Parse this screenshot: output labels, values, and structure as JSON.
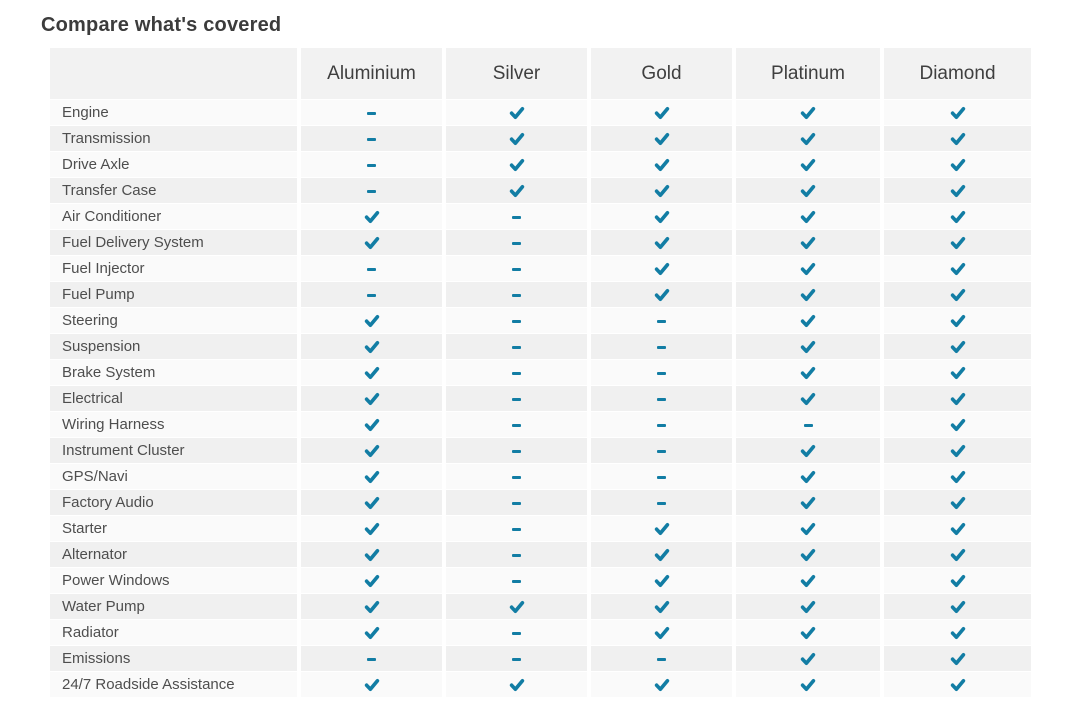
{
  "page": {
    "title": "Compare what's covered"
  },
  "table": {
    "accent_color": "#127da4",
    "check_icon_name": "check-icon",
    "dash_icon_name": "dash-icon",
    "row_label_header": "",
    "columns": [
      "Aluminium",
      "Silver",
      "Gold",
      "Platinum",
      "Diamond"
    ],
    "rows": [
      {
        "label": "Engine",
        "covered": [
          false,
          true,
          true,
          true,
          true
        ]
      },
      {
        "label": "Transmission",
        "covered": [
          false,
          true,
          true,
          true,
          true
        ]
      },
      {
        "label": "Drive Axle",
        "covered": [
          false,
          true,
          true,
          true,
          true
        ]
      },
      {
        "label": "Transfer Case",
        "covered": [
          false,
          true,
          true,
          true,
          true
        ]
      },
      {
        "label": "Air Conditioner",
        "covered": [
          true,
          false,
          true,
          true,
          true
        ]
      },
      {
        "label": "Fuel Delivery System",
        "covered": [
          true,
          false,
          true,
          true,
          true
        ]
      },
      {
        "label": "Fuel Injector",
        "covered": [
          false,
          false,
          true,
          true,
          true
        ]
      },
      {
        "label": "Fuel Pump",
        "covered": [
          false,
          false,
          true,
          true,
          true
        ]
      },
      {
        "label": "Steering",
        "covered": [
          true,
          false,
          false,
          true,
          true
        ]
      },
      {
        "label": "Suspension",
        "covered": [
          true,
          false,
          false,
          true,
          true
        ]
      },
      {
        "label": "Brake System",
        "covered": [
          true,
          false,
          false,
          true,
          true
        ]
      },
      {
        "label": "Electrical",
        "covered": [
          true,
          false,
          false,
          true,
          true
        ]
      },
      {
        "label": "Wiring Harness",
        "covered": [
          true,
          false,
          false,
          false,
          true
        ]
      },
      {
        "label": "Instrument Cluster",
        "covered": [
          true,
          false,
          false,
          true,
          true
        ]
      },
      {
        "label": "GPS/Navi",
        "covered": [
          true,
          false,
          false,
          true,
          true
        ]
      },
      {
        "label": "Factory Audio",
        "covered": [
          true,
          false,
          false,
          true,
          true
        ]
      },
      {
        "label": "Starter",
        "covered": [
          true,
          false,
          true,
          true,
          true
        ]
      },
      {
        "label": "Alternator",
        "covered": [
          true,
          false,
          true,
          true,
          true
        ]
      },
      {
        "label": "Power Windows",
        "covered": [
          true,
          false,
          true,
          true,
          true
        ]
      },
      {
        "label": "Water Pump",
        "covered": [
          true,
          true,
          true,
          true,
          true
        ]
      },
      {
        "label": "Radiator",
        "covered": [
          true,
          false,
          true,
          true,
          true
        ]
      },
      {
        "label": "Emissions",
        "covered": [
          false,
          false,
          false,
          true,
          true
        ]
      },
      {
        "label": "24/7 Roadside Assistance",
        "covered": [
          true,
          true,
          true,
          true,
          true
        ]
      }
    ]
  }
}
